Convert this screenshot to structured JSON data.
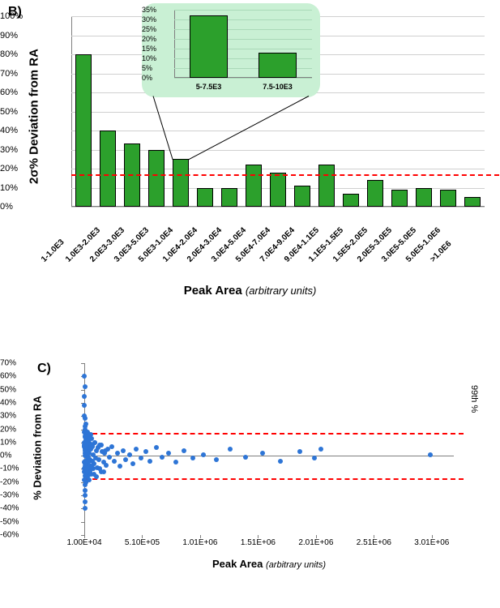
{
  "panelB": {
    "label": "B)",
    "y_axis_title": "2σ% Deviation from RA",
    "x_axis_title": "Peak Area",
    "x_axis_subtitle": "(arbitrary units)",
    "ylim": [
      0,
      100
    ],
    "ytick_step": 10,
    "ytick_suffix": "%",
    "reference_line_value": 17,
    "reference_line_color": "#ff0000",
    "bar_color": "#2ca02c",
    "bar_border_color": "#000000",
    "background_color": "#ffffff",
    "grid_color": "#d0d0d0",
    "label_fontsize": 15,
    "tick_fontsize": 11,
    "categories": [
      "1-1.0E3",
      "1.0E3-2.0E3",
      "2.0E3-3.0E3",
      "3.0E3-5.0E3",
      "5.0E3-1.0E4",
      "1.0E4-2.0E4",
      "2.0E4-3.0E4",
      "3.0E4-5.0E4",
      "5.0E4-7.0E4",
      "7.0E4-9.0E4",
      "9.0E4-1.1E5",
      "1.1E5-1.5E5",
      "1.5E5-2.0E5",
      "2.0E5-3.0E5",
      "3.0E5-5.0E5",
      "5.0E5-1.0E6",
      ">1.0E6"
    ],
    "values": [
      80,
      40,
      33,
      30,
      25,
      10,
      10,
      22,
      18,
      11,
      22,
      7,
      14,
      9,
      10,
      9,
      5
    ],
    "inset": {
      "background_color": "#c9f0d4",
      "bar_color": "#2ca02c",
      "ylim": [
        0,
        35
      ],
      "ytick_step": 5,
      "ytick_suffix": "%",
      "categories": [
        "5-7.5E3",
        "7.5-10E3"
      ],
      "values": [
        32,
        13
      ],
      "callout_target_bar_index": 4
    }
  },
  "panelC": {
    "label": "C)",
    "y_axis_title": "% Deviation from RA",
    "x_axis_title": "Peak Area",
    "x_axis_subtitle": "(arbitrary units)",
    "ylim": [
      -60,
      70
    ],
    "yticks": [
      -60,
      -50,
      -40,
      -30,
      -20,
      -10,
      0,
      10,
      20,
      30,
      40,
      50,
      60,
      70
    ],
    "ytick_suffix": "%",
    "xlim": [
      10000,
      3200000
    ],
    "xticks": [
      10000,
      510000,
      1010000,
      1510000,
      2010000,
      2510000,
      3010000
    ],
    "xtick_labels": [
      "1.00E+04",
      "5.10E+05",
      "1.01E+06",
      "1.51E+06",
      "2.01E+06",
      "2.51E+06",
      "3.01E+06"
    ],
    "reference_lines": [
      17,
      -17
    ],
    "reference_line_color": "#ff0000",
    "marker_color": "#2e75d6",
    "grid_color": "#d0d0d0",
    "background_color": "#ffffff",
    "right_label": "99th %",
    "points": [
      [
        12000,
        60
      ],
      [
        14000,
        52
      ],
      [
        11000,
        38
      ],
      [
        13000,
        30
      ],
      [
        15000,
        28
      ],
      [
        16000,
        -40
      ],
      [
        18000,
        -30
      ],
      [
        20000,
        -22
      ],
      [
        12000,
        18
      ],
      [
        14000,
        14
      ],
      [
        11500,
        10
      ],
      [
        13000,
        7
      ],
      [
        15000,
        5
      ],
      [
        16000,
        2
      ],
      [
        18000,
        0
      ],
      [
        20000,
        -4
      ],
      [
        22000,
        12
      ],
      [
        24000,
        -8
      ],
      [
        26000,
        6
      ],
      [
        28000,
        -12
      ],
      [
        30000,
        9
      ],
      [
        32000,
        -6
      ],
      [
        34000,
        4
      ],
      [
        36000,
        -2
      ],
      [
        38000,
        8
      ],
      [
        40000,
        -10
      ],
      [
        42000,
        3
      ],
      [
        44000,
        -5
      ],
      [
        46000,
        11
      ],
      [
        48000,
        -1
      ],
      [
        50000,
        6
      ],
      [
        52000,
        -7
      ],
      [
        55000,
        2
      ],
      [
        58000,
        -3
      ],
      [
        60000,
        9
      ],
      [
        63000,
        -14
      ],
      [
        66000,
        5
      ],
      [
        70000,
        -8
      ],
      [
        74000,
        13
      ],
      [
        78000,
        -4
      ],
      [
        82000,
        7
      ],
      [
        86000,
        -10
      ],
      [
        90000,
        1
      ],
      [
        95000,
        -6
      ],
      [
        100000,
        10
      ],
      [
        105000,
        -2
      ],
      [
        112000,
        4
      ],
      [
        120000,
        -9
      ],
      [
        128000,
        6
      ],
      [
        136000,
        -3
      ],
      [
        145000,
        8
      ],
      [
        155000,
        -12
      ],
      [
        165000,
        3
      ],
      [
        175000,
        -5
      ],
      [
        185000,
        2
      ],
      [
        200000,
        -7
      ],
      [
        215000,
        5
      ],
      [
        230000,
        -1
      ],
      [
        250000,
        7
      ],
      [
        270000,
        -4
      ],
      [
        295000,
        2
      ],
      [
        320000,
        -8
      ],
      [
        345000,
        4
      ],
      [
        370000,
        -3
      ],
      [
        400000,
        1
      ],
      [
        430000,
        -6
      ],
      [
        460000,
        5
      ],
      [
        500000,
        -2
      ],
      [
        540000,
        3
      ],
      [
        580000,
        -4
      ],
      [
        630000,
        6
      ],
      [
        680000,
        -1
      ],
      [
        740000,
        2
      ],
      [
        800000,
        -5
      ],
      [
        870000,
        4
      ],
      [
        950000,
        -2
      ],
      [
        1040000,
        1
      ],
      [
        1150000,
        -3
      ],
      [
        1270000,
        5
      ],
      [
        1400000,
        -1
      ],
      [
        1550000,
        2
      ],
      [
        1700000,
        -4
      ],
      [
        1870000,
        3
      ],
      [
        2000000,
        -2
      ],
      [
        2050000,
        5
      ],
      [
        3000000,
        1
      ],
      [
        11000,
        -18
      ],
      [
        13500,
        22
      ],
      [
        17000,
        -26
      ],
      [
        21000,
        16
      ],
      [
        24000,
        -20
      ],
      [
        27000,
        24
      ],
      [
        31000,
        -14
      ],
      [
        35000,
        18
      ],
      [
        40000,
        -16
      ],
      [
        45000,
        12
      ],
      [
        50000,
        -18
      ],
      [
        55000,
        14
      ],
      [
        60000,
        -12
      ],
      [
        67000,
        16
      ],
      [
        75000,
        -10
      ],
      [
        83000,
        8
      ],
      [
        92000,
        -14
      ],
      [
        102000,
        10
      ],
      [
        114000,
        -16
      ],
      [
        127000,
        6
      ],
      [
        141000,
        -10
      ],
      [
        157000,
        8
      ],
      [
        175000,
        -12
      ],
      [
        195000,
        4
      ],
      [
        11200,
        45
      ],
      [
        14200,
        -35
      ],
      [
        12800,
        -12
      ],
      [
        15500,
        -8
      ],
      [
        17200,
        20
      ],
      [
        19500,
        -15
      ],
      [
        10500,
        -5
      ],
      [
        11800,
        8
      ],
      [
        13200,
        -10
      ],
      [
        14800,
        15
      ],
      [
        16500,
        -6
      ],
      [
        18200,
        4
      ],
      [
        20500,
        -9
      ],
      [
        23000,
        11
      ],
      [
        25500,
        -4
      ],
      [
        28500,
        7
      ],
      [
        31500,
        -11
      ],
      [
        34500,
        2
      ]
    ]
  }
}
